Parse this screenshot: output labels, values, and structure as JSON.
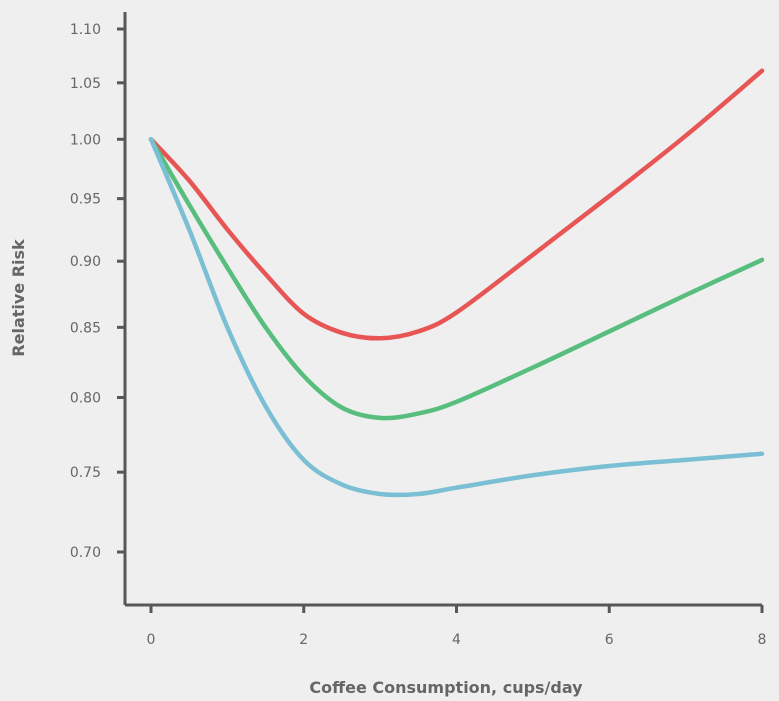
{
  "chart_data": {
    "type": "line",
    "title": "",
    "xlabel": "Coffee Consumption, cups/day",
    "ylabel": "Relative Risk",
    "x_ticks": [
      0,
      2,
      4,
      6,
      8
    ],
    "y_ticks": [
      0.7,
      0.75,
      0.8,
      0.85,
      0.9,
      0.95,
      1.0,
      1.05,
      1.1
    ],
    "y_tick_labels": [
      "0.70",
      "0.75",
      "0.80",
      "0.85",
      "0.90",
      "0.95",
      "1.00",
      "1.05",
      "1.10"
    ],
    "xlim": [
      -0.35,
      8
    ],
    "ylim": [
      0.67,
      1.115
    ],
    "y_scale": "log",
    "grid": false,
    "series": [
      {
        "color": "#e85555",
        "x": [
          0,
          0.5,
          1,
          1.5,
          2,
          2.5,
          3,
          3.5,
          4,
          5,
          6,
          7,
          8
        ],
        "y": [
          1.0,
          0.965,
          0.925,
          0.89,
          0.86,
          0.846,
          0.842,
          0.847,
          0.861,
          0.905,
          0.952,
          1.003,
          1.061
        ]
      },
      {
        "color": "#58be7d",
        "x": [
          0,
          0.5,
          1,
          1.5,
          2,
          2.5,
          3,
          3.5,
          4,
          5,
          6,
          7,
          8
        ],
        "y": [
          1.0,
          0.945,
          0.895,
          0.85,
          0.815,
          0.793,
          0.786,
          0.789,
          0.797,
          0.821,
          0.847,
          0.874,
          0.901
        ]
      },
      {
        "color": "#7bbfd5",
        "x": [
          0,
          0.5,
          1,
          1.5,
          2,
          2.5,
          3,
          3.5,
          4,
          5,
          6,
          7,
          8
        ],
        "y": [
          1.0,
          0.925,
          0.85,
          0.794,
          0.758,
          0.742,
          0.736,
          0.736,
          0.74,
          0.748,
          0.754,
          0.758,
          0.762
        ]
      }
    ]
  }
}
